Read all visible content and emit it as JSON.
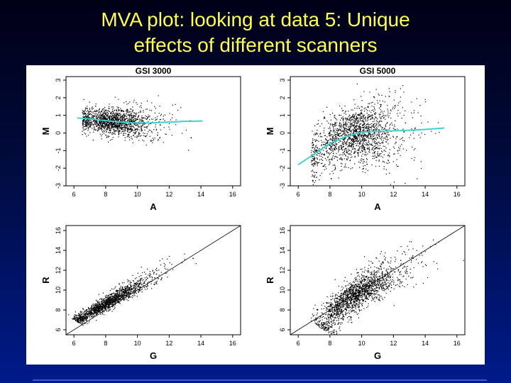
{
  "slide": {
    "title_line1": "MVA plot: looking at data 5: Unique",
    "title_line2": "effects of different scanners"
  },
  "colors": {
    "title": "#ffff55",
    "background_top": "#000016",
    "background_bottom": "#001a8a",
    "points": "#000000",
    "loess": "#3fd0d0"
  },
  "chart_data": [
    {
      "id": "ma-gsi3000",
      "type": "scatter",
      "title": "GSI 3000",
      "xlabel": "A",
      "ylabel": "M",
      "xlim": [
        5.5,
        16.5
      ],
      "ylim": [
        -3,
        3.2
      ],
      "xticks": [
        6,
        8,
        10,
        12,
        14,
        16
      ],
      "yticks": [
        -3,
        -2,
        -1,
        0,
        1,
        2,
        3
      ],
      "point_cloud": {
        "n": 1600,
        "x_center": 8.6,
        "x_spread": 1.3,
        "x_min": 6.5,
        "x_max": 14,
        "y_spread": 0.35
      },
      "loess": {
        "x": [
          6.2,
          7,
          8,
          9,
          10,
          11,
          12,
          13,
          14.1
        ],
        "y": [
          0.85,
          0.8,
          0.7,
          0.62,
          0.55,
          0.58,
          0.62,
          0.66,
          0.68
        ]
      }
    },
    {
      "id": "ma-gsi5000",
      "type": "scatter",
      "title": "GSI 5000",
      "xlabel": "A",
      "ylabel": "M",
      "xlim": [
        5.5,
        16.5
      ],
      "ylim": [
        -3,
        3.2
      ],
      "xticks": [
        6,
        8,
        10,
        12,
        14,
        16
      ],
      "yticks": [
        -3,
        -2,
        -1,
        0,
        1,
        2,
        3
      ],
      "point_cloud": {
        "n": 1800,
        "x_center": 9.6,
        "x_spread": 1.6,
        "x_min": 6.8,
        "x_max": 15,
        "y_spread": 0.75
      },
      "loess": {
        "x": [
          6,
          7,
          8,
          9,
          10,
          11,
          12,
          13,
          14,
          15.2
        ],
        "y": [
          -1.8,
          -1.2,
          -0.6,
          -0.2,
          0.05,
          0.1,
          0.12,
          0.15,
          0.2,
          0.28
        ]
      }
    },
    {
      "id": "rg-gsi3000",
      "type": "scatter",
      "title": "",
      "xlabel": "G",
      "ylabel": "R",
      "xlim": [
        5.5,
        16.5
      ],
      "ylim": [
        5.5,
        16.5
      ],
      "xticks": [
        6,
        8,
        10,
        12,
        14,
        16
      ],
      "yticks": [
        6,
        8,
        10,
        12,
        14,
        16
      ],
      "point_cloud": {
        "n": 1600,
        "x_center": 8.6,
        "x_spread": 1.3,
        "x_min": 6.5,
        "x_max": 14,
        "y_spread": 0.35,
        "m_fn": "gsi3000"
      },
      "identity_line": {
        "x": [
          5.5,
          16.5
        ],
        "y": [
          5.5,
          16.5
        ]
      }
    },
    {
      "id": "rg-gsi5000",
      "type": "scatter",
      "title": "",
      "xlabel": "G",
      "ylabel": "R",
      "xlim": [
        5.5,
        16.5
      ],
      "ylim": [
        5.5,
        16.5
      ],
      "xticks": [
        6,
        8,
        10,
        12,
        14,
        16
      ],
      "yticks": [
        6,
        8,
        10,
        12,
        14,
        16
      ],
      "point_cloud": {
        "n": 1800,
        "x_center": 9.6,
        "x_spread": 1.6,
        "x_min": 6.8,
        "x_max": 15,
        "y_spread": 0.75,
        "m_fn": "gsi5000"
      },
      "identity_line": {
        "x": [
          5.5,
          16.5
        ],
        "y": [
          5.5,
          16.5
        ]
      }
    }
  ]
}
